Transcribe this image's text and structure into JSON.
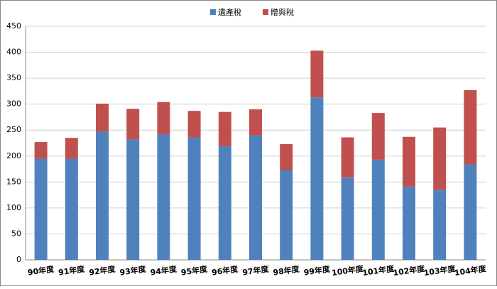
{
  "chart_data": {
    "type": "stacked_bar",
    "categories": [
      "90年度",
      "91年度",
      "92年度",
      "93年度",
      "94年度",
      "95年度",
      "96年度",
      "97年度",
      "98年度",
      "99年度",
      "100年度",
      "101年度",
      "102年度",
      "103年度",
      "104年度"
    ],
    "series": [
      {
        "name": "遺產稅",
        "color": "#4f81bd",
        "values": [
          195,
          195,
          247,
          232,
          242,
          236,
          219,
          240,
          173,
          313,
          159,
          193,
          141,
          135,
          184
        ]
      },
      {
        "name": "贈與稅",
        "color": "#c0504d",
        "values": [
          32,
          40,
          54,
          59,
          62,
          51,
          66,
          50,
          50,
          90,
          77,
          90,
          96,
          120,
          143
        ]
      }
    ],
    "ylim": [
      0,
      450
    ],
    "yticks": [
      0,
      50,
      100,
      150,
      200,
      250,
      300,
      350,
      400,
      450
    ],
    "grid": true,
    "legend": "top"
  }
}
